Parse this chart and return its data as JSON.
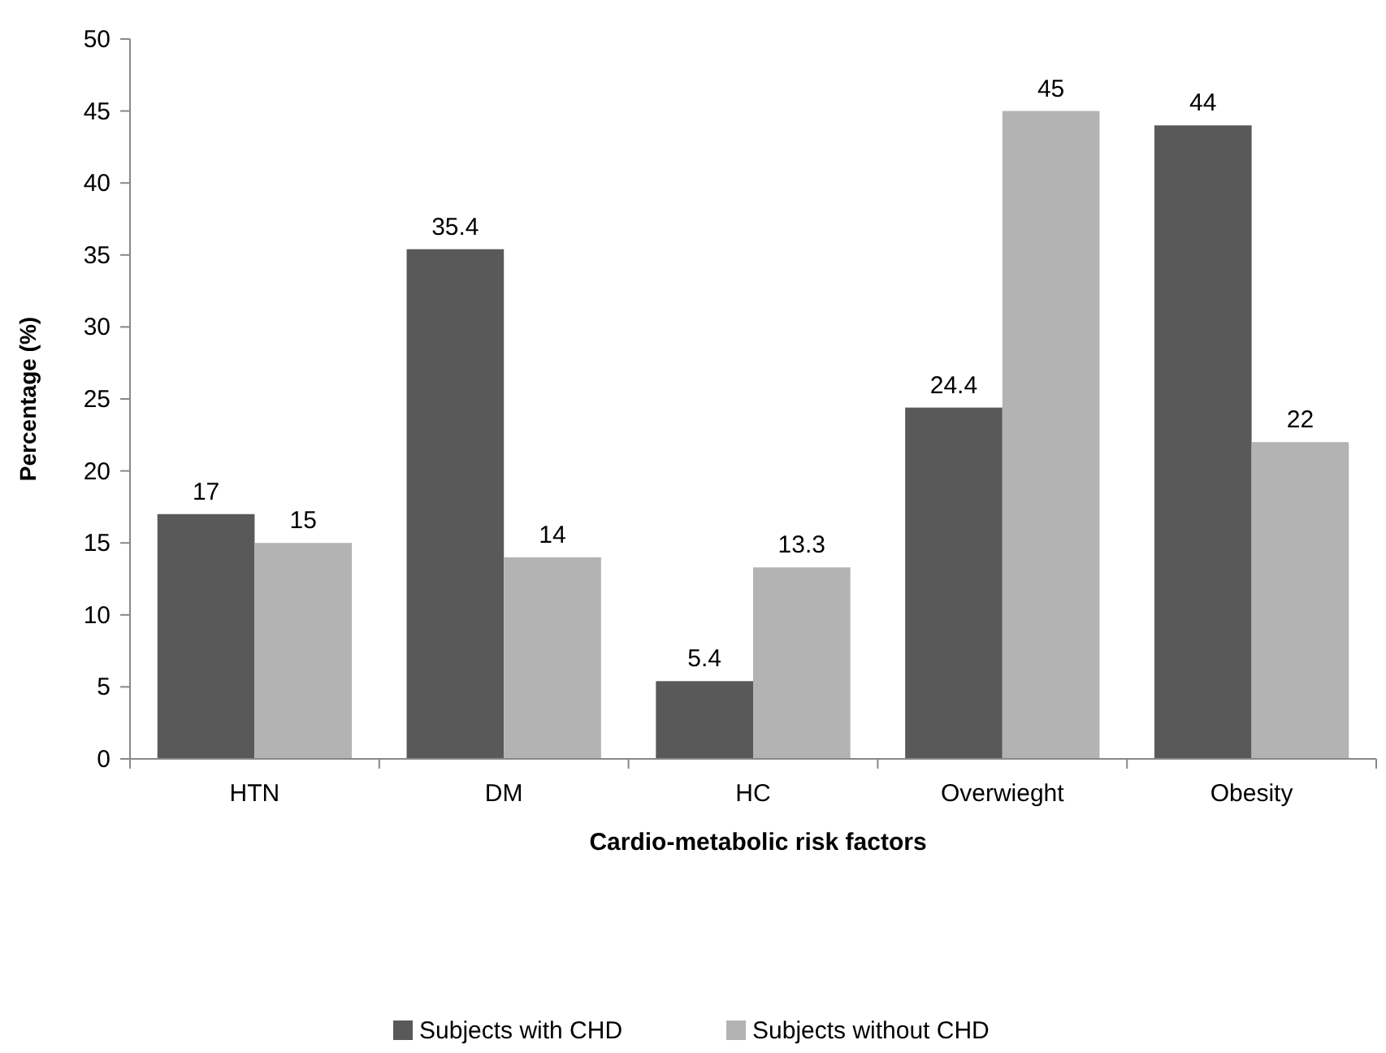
{
  "chart_data": {
    "type": "bar",
    "xlabel": "Cardio-metabolic risk factors",
    "ylabel": "Percentage (%)",
    "categories": [
      "HTN",
      "DM",
      "HC",
      "Overwieght",
      "Obesity"
    ],
    "series": [
      {
        "name": "Subjects with CHD",
        "color": "#595959",
        "values": [
          17,
          35.4,
          5.4,
          24.4,
          44
        ]
      },
      {
        "name": "Subjects without CHD",
        "color": "#b3b3b3",
        "values": [
          15,
          14,
          13.3,
          45,
          22
        ]
      }
    ],
    "ylim": [
      0,
      50
    ],
    "yticks": [
      0,
      5,
      10,
      15,
      20,
      25,
      30,
      35,
      40,
      45,
      50
    ],
    "grid": false,
    "data_labels": true,
    "legend": "bottom"
  }
}
